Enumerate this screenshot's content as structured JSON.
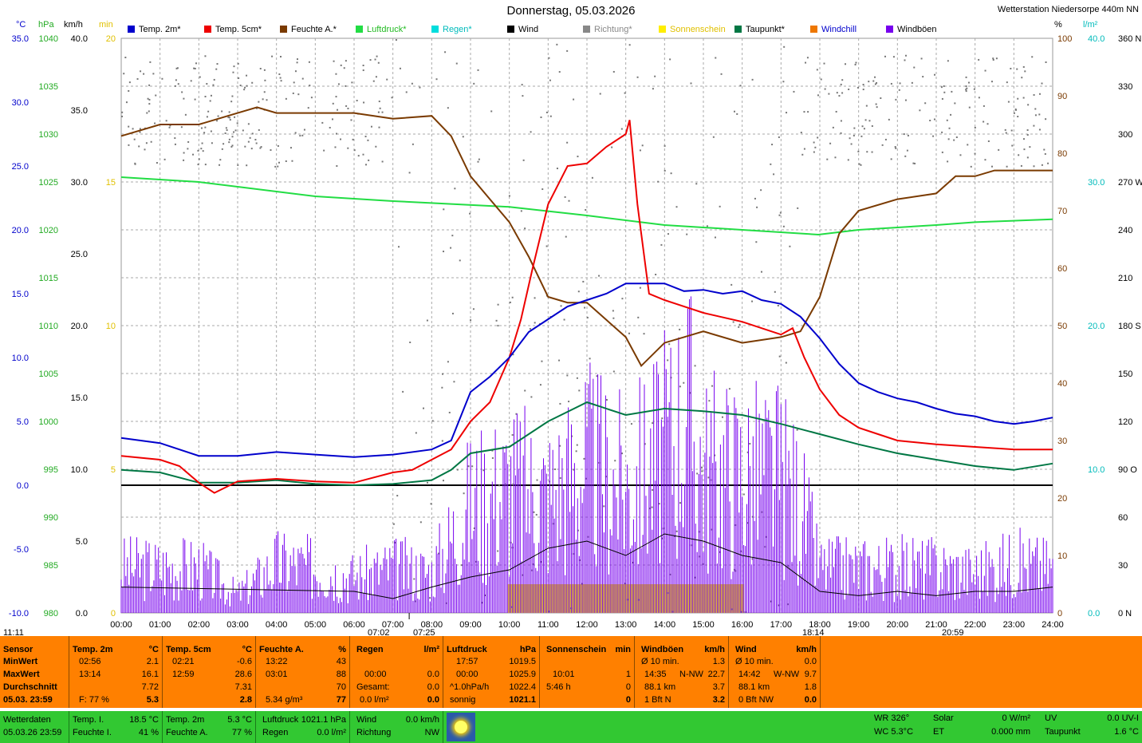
{
  "title": "Donnerstag, 05.03.2026",
  "station": "Wetterstation Niedersorpe 440m NN",
  "units": {
    "c": "°C",
    "hpa": "hPa",
    "kmh": "km/h",
    "min": "min",
    "pct": "%",
    "lm2": "l/m²"
  },
  "legend": [
    {
      "label": "Temp. 2m*",
      "color": "#0000cc"
    },
    {
      "label": "Temp. 5cm*",
      "color": "#ee0000"
    },
    {
      "label": "Feuchte A.*",
      "color": "#7a3a00"
    },
    {
      "label": "Luftdruck*",
      "color": "#22dd44"
    },
    {
      "label": "Regen*",
      "color": "#00dddd"
    },
    {
      "label": "Wind",
      "color": "#000000"
    },
    {
      "label": "Richtung*",
      "color": "#888888"
    },
    {
      "label": "Sonnenschein",
      "color": "#ffee00"
    },
    {
      "label": "Taupunkt*",
      "color": "#007744"
    },
    {
      "label": "Windchill",
      "color": "#ee7700"
    },
    {
      "label": "Windböen",
      "color": "#7700ee"
    }
  ],
  "chart_data": {
    "type": "line",
    "x_ticks": [
      "00:00",
      "01:00",
      "02:00",
      "03:00",
      "04:00",
      "05:00",
      "06:00",
      "07:00",
      "08:00",
      "09:00",
      "10:00",
      "11:00",
      "12:00",
      "13:00",
      "14:00",
      "15:00",
      "16:00",
      "17:00",
      "18:00",
      "19:00",
      "20:00",
      "21:00",
      "22:00",
      "23:00",
      "24:00"
    ],
    "axes": {
      "temp_c": [
        "35.0",
        "30.0",
        "25.0",
        "20.0",
        "15.0",
        "10.0",
        "5.0",
        "0.0",
        "-5.0",
        "-10.0"
      ],
      "pressure_hpa": [
        "1040",
        "1035",
        "1030",
        "1025",
        "1020",
        "1015",
        "1010",
        "1005",
        "1000",
        "995",
        "990",
        "985",
        "980"
      ],
      "wind_kmh": [
        "40.0",
        "35.0",
        "30.0",
        "25.0",
        "20.0",
        "15.0",
        "10.0",
        "5.0",
        "0.0"
      ],
      "sun_min": [
        "20",
        "15",
        "10",
        "5",
        "0"
      ],
      "humidity_pct": [
        "100",
        "90",
        "80",
        "70",
        "60",
        "50",
        "40",
        "30",
        "20",
        "10",
        "0"
      ],
      "rain_lm2": [
        "40.0",
        "30.0",
        "20.0",
        "10.0",
        "0.0"
      ],
      "direction": [
        "360 N",
        "330",
        "300",
        "270 W",
        "240",
        "210",
        "180 S",
        "150",
        "120",
        "90 O",
        "60",
        "30",
        "0 N"
      ]
    },
    "series": [
      {
        "name": "Temp. 2m",
        "unit": "°C",
        "color": "#0000cc",
        "points": [
          [
            0,
            3.7
          ],
          [
            1,
            3.3
          ],
          [
            2,
            2.3
          ],
          [
            3,
            2.3
          ],
          [
            4,
            2.6
          ],
          [
            5,
            2.4
          ],
          [
            6,
            2.2
          ],
          [
            7,
            2.4
          ],
          [
            8,
            2.8
          ],
          [
            8.5,
            3.5
          ],
          [
            9,
            7.3
          ],
          [
            9.5,
            8.5
          ],
          [
            10,
            10.0
          ],
          [
            10.5,
            12.0
          ],
          [
            11,
            13.0
          ],
          [
            11.5,
            14.0
          ],
          [
            12,
            14.5
          ],
          [
            12.5,
            15.0
          ],
          [
            13,
            15.8
          ],
          [
            13.5,
            15.8
          ],
          [
            14,
            15.8
          ],
          [
            14.5,
            15.2
          ],
          [
            15,
            15.3
          ],
          [
            15.5,
            15.0
          ],
          [
            16,
            15.2
          ],
          [
            16.5,
            14.5
          ],
          [
            17,
            14.2
          ],
          [
            17.5,
            13.2
          ],
          [
            18,
            11.5
          ],
          [
            18.5,
            9.5
          ],
          [
            19,
            8.0
          ],
          [
            19.5,
            7.3
          ],
          [
            20,
            6.8
          ],
          [
            20.5,
            6.5
          ],
          [
            21,
            6.0
          ],
          [
            21.5,
            5.6
          ],
          [
            22,
            5.4
          ],
          [
            22.5,
            5.0
          ],
          [
            23,
            4.8
          ],
          [
            23.5,
            5.0
          ],
          [
            24,
            5.3
          ]
        ]
      },
      {
        "name": "Temp. 5cm",
        "unit": "°C",
        "color": "#ee0000",
        "points": [
          [
            0,
            2.3
          ],
          [
            1,
            2.0
          ],
          [
            1.5,
            1.5
          ],
          [
            2,
            0.2
          ],
          [
            2.4,
            -0.6
          ],
          [
            3,
            0.3
          ],
          [
            4,
            0.5
          ],
          [
            5,
            0.3
          ],
          [
            6,
            0.2
          ],
          [
            7,
            1.0
          ],
          [
            7.5,
            1.2
          ],
          [
            8,
            2.0
          ],
          [
            8.5,
            2.8
          ],
          [
            9,
            5.0
          ],
          [
            9.5,
            6.5
          ],
          [
            10,
            10.0
          ],
          [
            10.3,
            13.0
          ],
          [
            10.6,
            17.0
          ],
          [
            11,
            22.0
          ],
          [
            11.5,
            25.0
          ],
          [
            12,
            25.2
          ],
          [
            12.5,
            26.5
          ],
          [
            13,
            27.5
          ],
          [
            13.1,
            28.6
          ],
          [
            13.3,
            22.0
          ],
          [
            13.6,
            15.0
          ],
          [
            14,
            14.5
          ],
          [
            15,
            13.5
          ],
          [
            16,
            12.8
          ],
          [
            17,
            11.8
          ],
          [
            17.3,
            12.3
          ],
          [
            17.6,
            10.0
          ],
          [
            18,
            7.5
          ],
          [
            18.5,
            5.5
          ],
          [
            19,
            4.5
          ],
          [
            19.5,
            4.0
          ],
          [
            20,
            3.5
          ],
          [
            21,
            3.2
          ],
          [
            22,
            3.0
          ],
          [
            23,
            2.8
          ],
          [
            24,
            2.8
          ]
        ]
      },
      {
        "name": "Feuchte A.",
        "unit": "%",
        "color": "#7a3a00",
        "points": [
          [
            0,
            83
          ],
          [
            1,
            85
          ],
          [
            2,
            85
          ],
          [
            3,
            87
          ],
          [
            3.5,
            88
          ],
          [
            4,
            87
          ],
          [
            5,
            87
          ],
          [
            6,
            87
          ],
          [
            7,
            86
          ],
          [
            8,
            86.5
          ],
          [
            8.5,
            83
          ],
          [
            9,
            76
          ],
          [
            9.5,
            72
          ],
          [
            10,
            68
          ],
          [
            10.5,
            62
          ],
          [
            11,
            55
          ],
          [
            11.5,
            54
          ],
          [
            12,
            54
          ],
          [
            12.5,
            51
          ],
          [
            13,
            48
          ],
          [
            13.4,
            43
          ],
          [
            14,
            47
          ],
          [
            14.5,
            48
          ],
          [
            15,
            49
          ],
          [
            16,
            47
          ],
          [
            17,
            48
          ],
          [
            17.5,
            49
          ],
          [
            18,
            55
          ],
          [
            18.5,
            66
          ],
          [
            19,
            70
          ],
          [
            20,
            72
          ],
          [
            21,
            73
          ],
          [
            21.5,
            76
          ],
          [
            22,
            76
          ],
          [
            22.5,
            77
          ],
          [
            23,
            77
          ],
          [
            24,
            77
          ]
        ]
      },
      {
        "name": "Luftdruck",
        "unit": "hPa",
        "color": "#22dd44",
        "points": [
          [
            0,
            1025.5
          ],
          [
            2,
            1025.0
          ],
          [
            3,
            1024.5
          ],
          [
            5,
            1023.5
          ],
          [
            7,
            1023.0
          ],
          [
            10,
            1022.4
          ],
          [
            12,
            1021.5
          ],
          [
            14,
            1020.5
          ],
          [
            16,
            1020.0
          ],
          [
            17.96,
            1019.5
          ],
          [
            19,
            1020.0
          ],
          [
            21,
            1020.5
          ],
          [
            22,
            1020.8
          ],
          [
            24,
            1021.1
          ]
        ]
      },
      {
        "name": "Taupunkt",
        "unit": "°C",
        "color": "#007744",
        "points": [
          [
            0,
            1.2
          ],
          [
            1,
            1.0
          ],
          [
            2,
            0.2
          ],
          [
            3,
            0.2
          ],
          [
            4,
            0.4
          ],
          [
            5,
            0.1
          ],
          [
            6,
            0.0
          ],
          [
            7,
            0.1
          ],
          [
            8,
            0.4
          ],
          [
            8.5,
            1.2
          ],
          [
            9,
            2.5
          ],
          [
            10,
            3.0
          ],
          [
            11,
            5.0
          ],
          [
            12,
            6.5
          ],
          [
            13,
            5.5
          ],
          [
            14,
            6.0
          ],
          [
            15,
            5.8
          ],
          [
            16,
            5.5
          ],
          [
            17,
            4.8
          ],
          [
            18,
            4.0
          ],
          [
            19,
            3.2
          ],
          [
            20,
            2.5
          ],
          [
            21,
            2.0
          ],
          [
            22,
            1.5
          ],
          [
            23,
            1.2
          ],
          [
            24,
            1.7
          ]
        ]
      },
      {
        "name": "Wind",
        "unit": "km/h",
        "color": "#000000",
        "points": [
          [
            0,
            1.8
          ],
          [
            6,
            1.5
          ],
          [
            7,
            1.0
          ],
          [
            8,
            1.8
          ],
          [
            9,
            2.5
          ],
          [
            10,
            3.0
          ],
          [
            11,
            4.5
          ],
          [
            12,
            5.0
          ],
          [
            13,
            4.0
          ],
          [
            14,
            5.5
          ],
          [
            15,
            5.0
          ],
          [
            16,
            4.0
          ],
          [
            17,
            3.5
          ],
          [
            18,
            1.5
          ],
          [
            19,
            1.2
          ],
          [
            20,
            1.5
          ],
          [
            21,
            1.2
          ],
          [
            22,
            1.5
          ],
          [
            23,
            1.5
          ],
          [
            24,
            1.8
          ]
        ]
      },
      {
        "name": "Windböen",
        "unit": "km/h",
        "color": "#7700ee",
        "points": [
          [
            0,
            5.0
          ],
          [
            2,
            5.0
          ],
          [
            3,
            2.0
          ],
          [
            4,
            5.5
          ],
          [
            5,
            5.0
          ],
          [
            6,
            4.0
          ],
          [
            7,
            5.0
          ],
          [
            8,
            4.5
          ],
          [
            9,
            12.0
          ],
          [
            10,
            14.0
          ],
          [
            11,
            13.0
          ],
          [
            12,
            16.5
          ],
          [
            13,
            14.0
          ],
          [
            14,
            18.0
          ],
          [
            14.58,
            22.7
          ],
          [
            15,
            16.0
          ],
          [
            16,
            15.5
          ],
          [
            17,
            15.0
          ],
          [
            17.5,
            12.0
          ],
          [
            18,
            5.0
          ],
          [
            19,
            5.0
          ],
          [
            20,
            5.0
          ],
          [
            21,
            5.0
          ],
          [
            22,
            4.5
          ],
          [
            23,
            5.5
          ],
          [
            24,
            5.0
          ]
        ]
      }
    ],
    "sunshine_periods": [
      [
        9.95,
        16.05
      ]
    ],
    "markers": {
      "now": "11:11",
      "sunrise": "07:02",
      "sunrise2": "07:25",
      "sunset": "18:14",
      "sunset2": "20:59"
    }
  },
  "panel": {
    "sensor": {
      "head": "Sensor",
      "rows": [
        "MinWert",
        "MaxWert",
        "Durchschnitt"
      ],
      "date": "05.03. 23:59"
    },
    "temp2m": {
      "head": "Temp. 2m",
      "unit": "°C",
      "min_t": "02:56",
      "min_v": "2.1",
      "max_t": "13:14",
      "max_v": "16.1",
      "avg": "7.72",
      "f": "F: 77 %",
      "cur": "5.3"
    },
    "temp5cm": {
      "head": "Temp. 5cm",
      "unit": "°C",
      "min_t": "02:21",
      "min_v": "-0.6",
      "max_t": "12:59",
      "max_v": "28.6",
      "avg": "7.31",
      "cur": "2.8"
    },
    "feuchte": {
      "head": "Feuchte A.",
      "unit": "%",
      "min_t": "13:22",
      "min_v": "43",
      "max_t": "03:01",
      "max_v": "88",
      "avg": "70",
      "abs": "5.34 g/m³",
      "cur": "77"
    },
    "regen": {
      "head": "Regen",
      "unit": "l/m²",
      "t": "00:00",
      "v": "0.0",
      "ges_l": "Gesamt:",
      "ges": "0.0",
      "rate": "0.0 l/m²",
      "cur": "0.0"
    },
    "luftdruck": {
      "head": "Luftdruck",
      "unit": "hPa",
      "min_t": "17:57",
      "min_v": "1019.5",
      "max_t": "00:00",
      "max_v": "1025.9",
      "tend_l": "^1.0hPa/h",
      "tend": "1022.4",
      "state": "sonnig",
      "cur": "1021.1"
    },
    "sonne": {
      "head": "Sonnenschein",
      "unit": "min",
      "t": "10:01",
      "v": "1",
      "dur": "5:46 h",
      "dv": "0",
      "cur": "0"
    },
    "boeen": {
      "head": "Windböen",
      "unit": "km/h",
      "a_l": "Ø 10 min.",
      "a": "1.3",
      "t": "14:35",
      "dir": "N-NW",
      "max": "22.7",
      "km": "88.1 km",
      "kv": "3.7",
      "bft": "1 Bft N",
      "cur": "3.2"
    },
    "wind": {
      "head": "Wind",
      "unit": "km/h",
      "a_l": "Ø 10 min.",
      "a": "0.0",
      "t": "14:42",
      "dir": "W-NW",
      "max": "9.7",
      "km": "88.1 km",
      "kv": "1.8",
      "bft": "0 Bft NW",
      "cur": "0.0"
    }
  },
  "bottom": {
    "wd": "Wetterdaten",
    "wd_date": "05.03.26 23:59",
    "ti_l": "Temp. I.",
    "ti": "18.5 °C",
    "fi_l": "Feuchte I.",
    "fi": "41 %",
    "t2_l": "Temp. 2m",
    "t2": "5.3 °C",
    "fa_l": "Feuchte A.",
    "fa": "77 %",
    "ld_l": "Luftdruck",
    "ld": "1021.1 hPa",
    "rg_l": "Regen",
    "rg": "0.0 l/m²",
    "wi_l": "Wind",
    "wi": "0.0 km/h",
    "ri_l": "Richtung",
    "ri": "NW",
    "wr": "WR 326°",
    "wc": "WC 5.3°C",
    "so_l": "Solar",
    "so": "0 W/m²",
    "et_l": "ET",
    "et": "0.000 mm",
    "uv_l": "UV",
    "uv": "0.0 UV-I",
    "tp_l": "Taupunkt",
    "tp": "1.6 °C"
  }
}
